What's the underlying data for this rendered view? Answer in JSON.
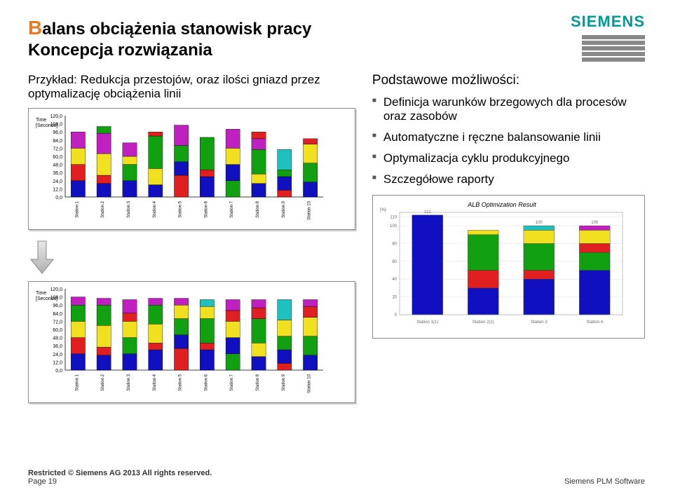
{
  "header": {
    "title_first_letter": "B",
    "title_rest": "alans obciążenia stanowisk pracy",
    "subtitle": "Koncepcja rozwiązania"
  },
  "logo": {
    "text": "SIEMENS"
  },
  "left": {
    "example_label": "Przykład: Redukcja przestojów, oraz ilości gniazd przez optymalizację obciążenia linii"
  },
  "chart1": {
    "y_label": "Time\n[Seconds]",
    "y_ticks": [
      "120,0",
      "108,0",
      "96,0",
      "84,0",
      "72,0",
      "60,0",
      "48,0",
      "36,0",
      "24,0",
      "12,0",
      "0,0"
    ],
    "y_max": 120,
    "stations": [
      "Station 1",
      "Station 2",
      "Station 3",
      "Station 4",
      "Station 5",
      "Station 6",
      "Station 7",
      "Station 8",
      "Station 9",
      "Station 10"
    ],
    "colors": {
      "blue": "#1010c0",
      "red": "#e02020",
      "yellow": "#f0e020",
      "green": "#10a010",
      "magenta": "#c020c0",
      "cyan": "#20c0c0"
    },
    "bars": [
      [
        [
          "blue",
          24
        ],
        [
          "red",
          24
        ],
        [
          "yellow",
          24
        ],
        [
          "magenta",
          24
        ]
      ],
      [
        [
          "blue",
          20
        ],
        [
          "red",
          12
        ],
        [
          "yellow",
          32
        ],
        [
          "magenta",
          30
        ],
        [
          "green",
          10
        ]
      ],
      [
        [
          "blue",
          24
        ],
        [
          "green",
          24
        ],
        [
          "yellow",
          12
        ],
        [
          "magenta",
          20
        ]
      ],
      [
        [
          "blue",
          18
        ],
        [
          "yellow",
          24
        ],
        [
          "green",
          48
        ],
        [
          "red",
          6
        ]
      ],
      [
        [
          "red",
          32
        ],
        [
          "blue",
          20
        ],
        [
          "green",
          24
        ],
        [
          "magenta",
          30
        ]
      ],
      [
        [
          "blue",
          30
        ],
        [
          "red",
          10
        ],
        [
          "green",
          48
        ]
      ],
      [
        [
          "green",
          24
        ],
        [
          "blue",
          24
        ],
        [
          "yellow",
          24
        ],
        [
          "magenta",
          28
        ]
      ],
      [
        [
          "blue",
          20
        ],
        [
          "yellow",
          14
        ],
        [
          "green",
          36
        ],
        [
          "magenta",
          16
        ],
        [
          "red",
          10
        ]
      ],
      [
        [
          "red",
          10
        ],
        [
          "blue",
          20
        ],
        [
          "green",
          10
        ],
        [
          "cyan",
          30
        ]
      ],
      [
        [
          "blue",
          22
        ],
        [
          "green",
          28
        ],
        [
          "yellow",
          28
        ],
        [
          "red",
          8
        ]
      ]
    ]
  },
  "chart2": {
    "y_label": "Time\n[Seconds]",
    "y_ticks": [
      "120,0",
      "108,0",
      "96,0",
      "84,0",
      "72,0",
      "60,0",
      "48,0",
      "36,0",
      "24,0",
      "12,0",
      "0,0"
    ],
    "y_max": 120,
    "stations": [
      "Station 1",
      "Station 2",
      "Station 3",
      "Station 4",
      "Station 5",
      "Station 6",
      "Station 7",
      "Station 8",
      "Station 9",
      "Station 10"
    ],
    "bars": [
      [
        [
          "blue",
          24
        ],
        [
          "red",
          24
        ],
        [
          "yellow",
          24
        ],
        [
          "green",
          24
        ],
        [
          "magenta",
          12
        ]
      ],
      [
        [
          "blue",
          22
        ],
        [
          "red",
          12
        ],
        [
          "yellow",
          32
        ],
        [
          "green",
          30
        ],
        [
          "magenta",
          10
        ]
      ],
      [
        [
          "blue",
          24
        ],
        [
          "green",
          24
        ],
        [
          "yellow",
          24
        ],
        [
          "red",
          12
        ],
        [
          "magenta",
          20
        ]
      ],
      [
        [
          "blue",
          30
        ],
        [
          "red",
          10
        ],
        [
          "yellow",
          28
        ],
        [
          "green",
          28
        ],
        [
          "magenta",
          10
        ]
      ],
      [
        [
          "red",
          32
        ],
        [
          "blue",
          20
        ],
        [
          "green",
          24
        ],
        [
          "yellow",
          20
        ],
        [
          "magenta",
          10
        ]
      ],
      [
        [
          "blue",
          30
        ],
        [
          "red",
          10
        ],
        [
          "green",
          36
        ],
        [
          "yellow",
          18
        ],
        [
          "cyan",
          10
        ]
      ],
      [
        [
          "green",
          24
        ],
        [
          "blue",
          24
        ],
        [
          "yellow",
          24
        ],
        [
          "red",
          16
        ],
        [
          "magenta",
          16
        ]
      ],
      [
        [
          "blue",
          20
        ],
        [
          "yellow",
          20
        ],
        [
          "green",
          36
        ],
        [
          "red",
          16
        ],
        [
          "magenta",
          12
        ]
      ],
      [
        [
          "red",
          10
        ],
        [
          "blue",
          20
        ],
        [
          "green",
          20
        ],
        [
          "yellow",
          24
        ],
        [
          "cyan",
          30
        ]
      ],
      [
        [
          "blue",
          22
        ],
        [
          "green",
          28
        ],
        [
          "yellow",
          28
        ],
        [
          "red",
          16
        ],
        [
          "magenta",
          10
        ]
      ]
    ]
  },
  "right": {
    "heading": "Podstawowe możliwości:",
    "bullets": [
      "Definicja warunków brzegowych dla procesów oraz zasobów",
      "Automatyczne i ręczne balansowanie linii",
      "Optymalizacja cyklu produkcyjnego",
      "Szczegółowe raporty"
    ]
  },
  "result_chart": {
    "title": "ALB Optimization Result",
    "y_unit": "[%]",
    "y_ticks": [
      "110",
      "100",
      "80",
      "60",
      "40",
      "20",
      "0"
    ],
    "y_max": 115,
    "stations": [
      "Station 1(1)",
      "Station 2(2)",
      "Station 3",
      "Station 4"
    ],
    "value_labels": [
      "112",
      "",
      "100",
      "100"
    ],
    "bars": [
      [
        [
          "blue",
          112
        ]
      ],
      [
        [
          "blue",
          30
        ],
        [
          "red",
          20
        ],
        [
          "green",
          40
        ],
        [
          "yellow",
          5
        ]
      ],
      [
        [
          "blue",
          40
        ],
        [
          "red",
          10
        ],
        [
          "green",
          30
        ],
        [
          "yellow",
          15
        ],
        [
          "cyan",
          5
        ]
      ],
      [
        [
          "blue",
          50
        ],
        [
          "green",
          20
        ],
        [
          "red",
          10
        ],
        [
          "yellow",
          15
        ],
        [
          "magenta",
          5
        ]
      ]
    ]
  },
  "footer": {
    "restricted": "Restricted © Siemens AG 2013 All rights reserved.",
    "page": "Page 19",
    "brand": "Siemens PLM Software"
  }
}
